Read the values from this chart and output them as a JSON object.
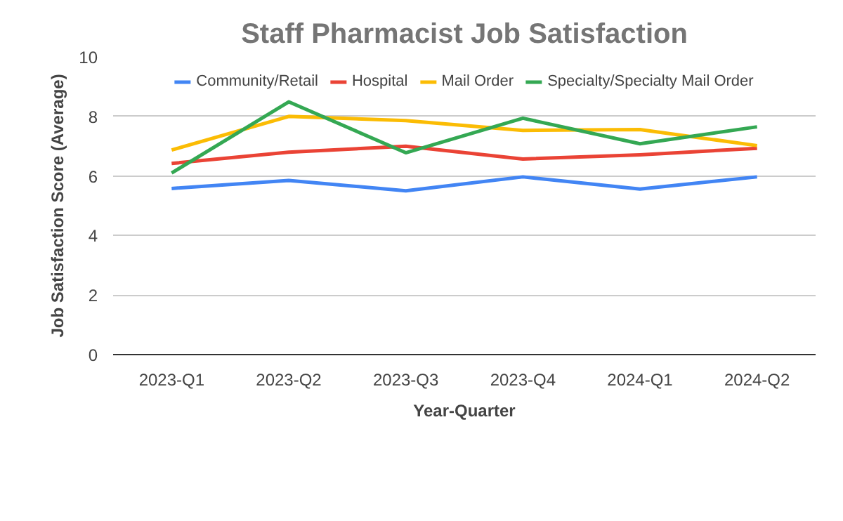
{
  "chart_data": {
    "type": "line",
    "title": "Staff Pharmacist Job Satisfaction",
    "xlabel": "Year-Quarter",
    "ylabel": "Job Satisfaction Score (Average)",
    "categories": [
      "2023-Q1",
      "2023-Q2",
      "2023-Q3",
      "2023-Q4",
      "2024-Q1",
      "2024-Q2"
    ],
    "series": [
      {
        "name": "Community/Retail",
        "color": "#4285f4",
        "values": [
          5.58,
          5.85,
          5.5,
          5.97,
          5.56,
          5.97
        ]
      },
      {
        "name": "Hospital",
        "color": "#ea4335",
        "values": [
          6.42,
          6.8,
          7.0,
          6.57,
          6.71,
          6.93
        ]
      },
      {
        "name": "Mail Order",
        "color": "#fbbc04",
        "values": [
          6.87,
          8.0,
          7.86,
          7.53,
          7.56,
          7.02
        ]
      },
      {
        "name": "Specialty/Specialty Mail Order",
        "color": "#34a853",
        "values": [
          6.1,
          8.49,
          6.78,
          7.94,
          7.08,
          7.65
        ]
      }
    ],
    "ylim": [
      0,
      10
    ],
    "yticks": [
      0,
      2,
      4,
      6,
      8,
      10
    ],
    "grid": "y",
    "legend": "top",
    "marker": "none",
    "line_style": "solid"
  }
}
